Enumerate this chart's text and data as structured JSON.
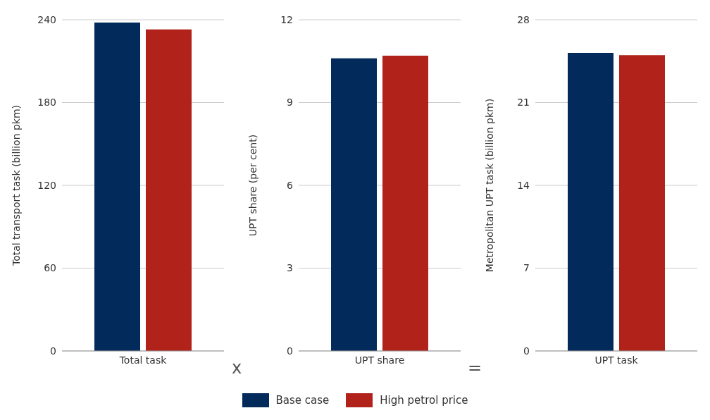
{
  "chart_data": [
    {
      "type": "bar",
      "categories": [
        "Total task"
      ],
      "ylabel": "Total transport task (billion pkm)",
      "ylim": [
        0,
        240
      ],
      "yticks": [
        0,
        60,
        120,
        180,
        240
      ],
      "grid": "y",
      "legend": "bottom",
      "annotations": [
        "x"
      ],
      "series": [
        {
          "name": "Base case",
          "color": "#022b5c",
          "values": [
            238
          ]
        },
        {
          "name": "High petrol price",
          "color": "#b1221b",
          "values": [
            233
          ]
        }
      ]
    },
    {
      "type": "bar",
      "categories": [
        "UPT share"
      ],
      "ylabel": "UPT share (per cent)",
      "ylim": [
        0,
        12
      ],
      "yticks": [
        0,
        3,
        6,
        9,
        12
      ],
      "grid": "y",
      "annotations": [
        "="
      ],
      "series": [
        {
          "color": "#022b5c",
          "values": [
            10.6
          ]
        },
        {
          "color": "#b1221b",
          "values": [
            10.7
          ]
        }
      ]
    },
    {
      "type": "bar",
      "categories": [
        "UPT task"
      ],
      "ylabel": "Metropolitan UPT task (billion pkm)",
      "ylim": [
        0,
        28
      ],
      "yticks": [
        0,
        7,
        14,
        21,
        28
      ],
      "grid": "y",
      "series": [
        {
          "color": "#022b5c",
          "values": [
            25.2
          ]
        },
        {
          "color": "#b1221b",
          "values": [
            25.0
          ]
        }
      ]
    }
  ]
}
